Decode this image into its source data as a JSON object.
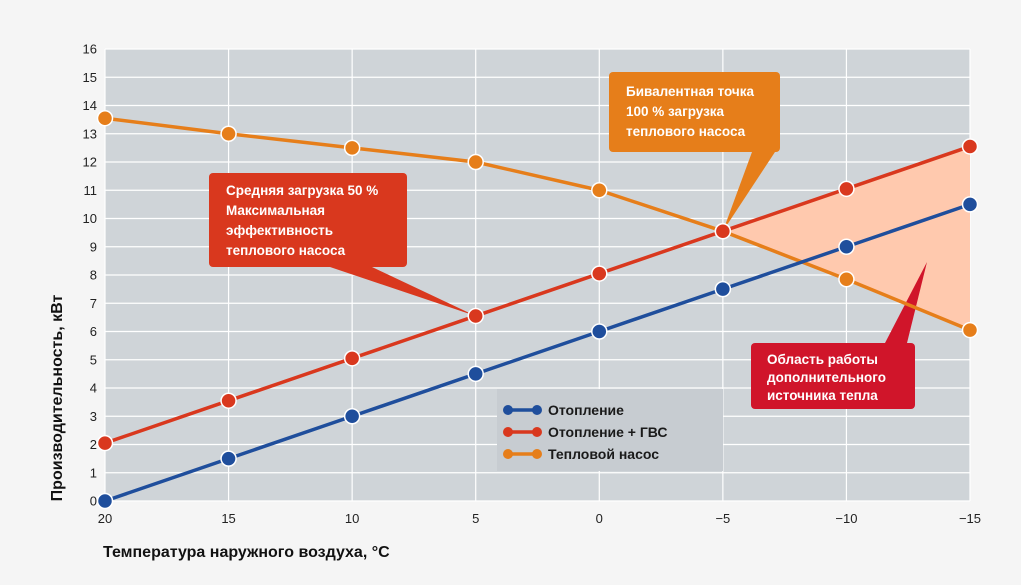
{
  "chart_data": {
    "type": "line",
    "xlabel": "Температура наружного воздуха, °C",
    "ylabel": "Производительность, кВт",
    "x": [
      20,
      15,
      10,
      5,
      0,
      -5,
      -10,
      -15
    ],
    "x_tick_labels": [
      "20",
      "15",
      "10",
      "5",
      "0",
      "−5",
      "−10",
      "−15"
    ],
    "xlim": [
      20,
      -15
    ],
    "ylim": [
      0,
      16
    ],
    "y_ticks": [
      0,
      1,
      2,
      3,
      4,
      5,
      6,
      7,
      8,
      9,
      10,
      11,
      12,
      13,
      14,
      15,
      16
    ],
    "grid": true,
    "legend_position": "center-right",
    "series": [
      {
        "name": "Отопление",
        "color": "#1f4e9c",
        "values": [
          0,
          1.5,
          3,
          4.5,
          6,
          7.5,
          9,
          10.5
        ]
      },
      {
        "name": "Отопление + ГВС",
        "color": "#d9381e",
        "values": [
          2.05,
          3.55,
          5.05,
          6.55,
          8.05,
          9.55,
          11.05,
          12.55
        ]
      },
      {
        "name": "Тепловой насос",
        "color": "#e67e1a",
        "values": [
          13.55,
          13.0,
          12.5,
          12.0,
          11.0,
          9.55,
          7.85,
          6.05
        ]
      }
    ],
    "annotations": [
      {
        "id": "avg",
        "lines": [
          "Средняя загрузка 50 %",
          "Максимальная",
          "эффективность",
          "теплового насоса"
        ],
        "color": "#d9381e",
        "points_to": {
          "x": 5,
          "y": 6.55
        }
      },
      {
        "id": "biv",
        "lines": [
          "Бивалентная точка",
          "100 % загрузка",
          "теплового насоса"
        ],
        "color": "#e67e1a",
        "points_to": {
          "x": -5,
          "y": 9.55
        }
      },
      {
        "id": "area",
        "lines": [
          "Область работы",
          "дополнительного",
          "источника тепла"
        ],
        "color": "#d0152a"
      }
    ],
    "shaded_region": {
      "color": "#ffc9ae",
      "from_x": -5,
      "to_x": -15,
      "between": [
        "Тепловой насос",
        "Отопление + ГВС"
      ]
    }
  }
}
